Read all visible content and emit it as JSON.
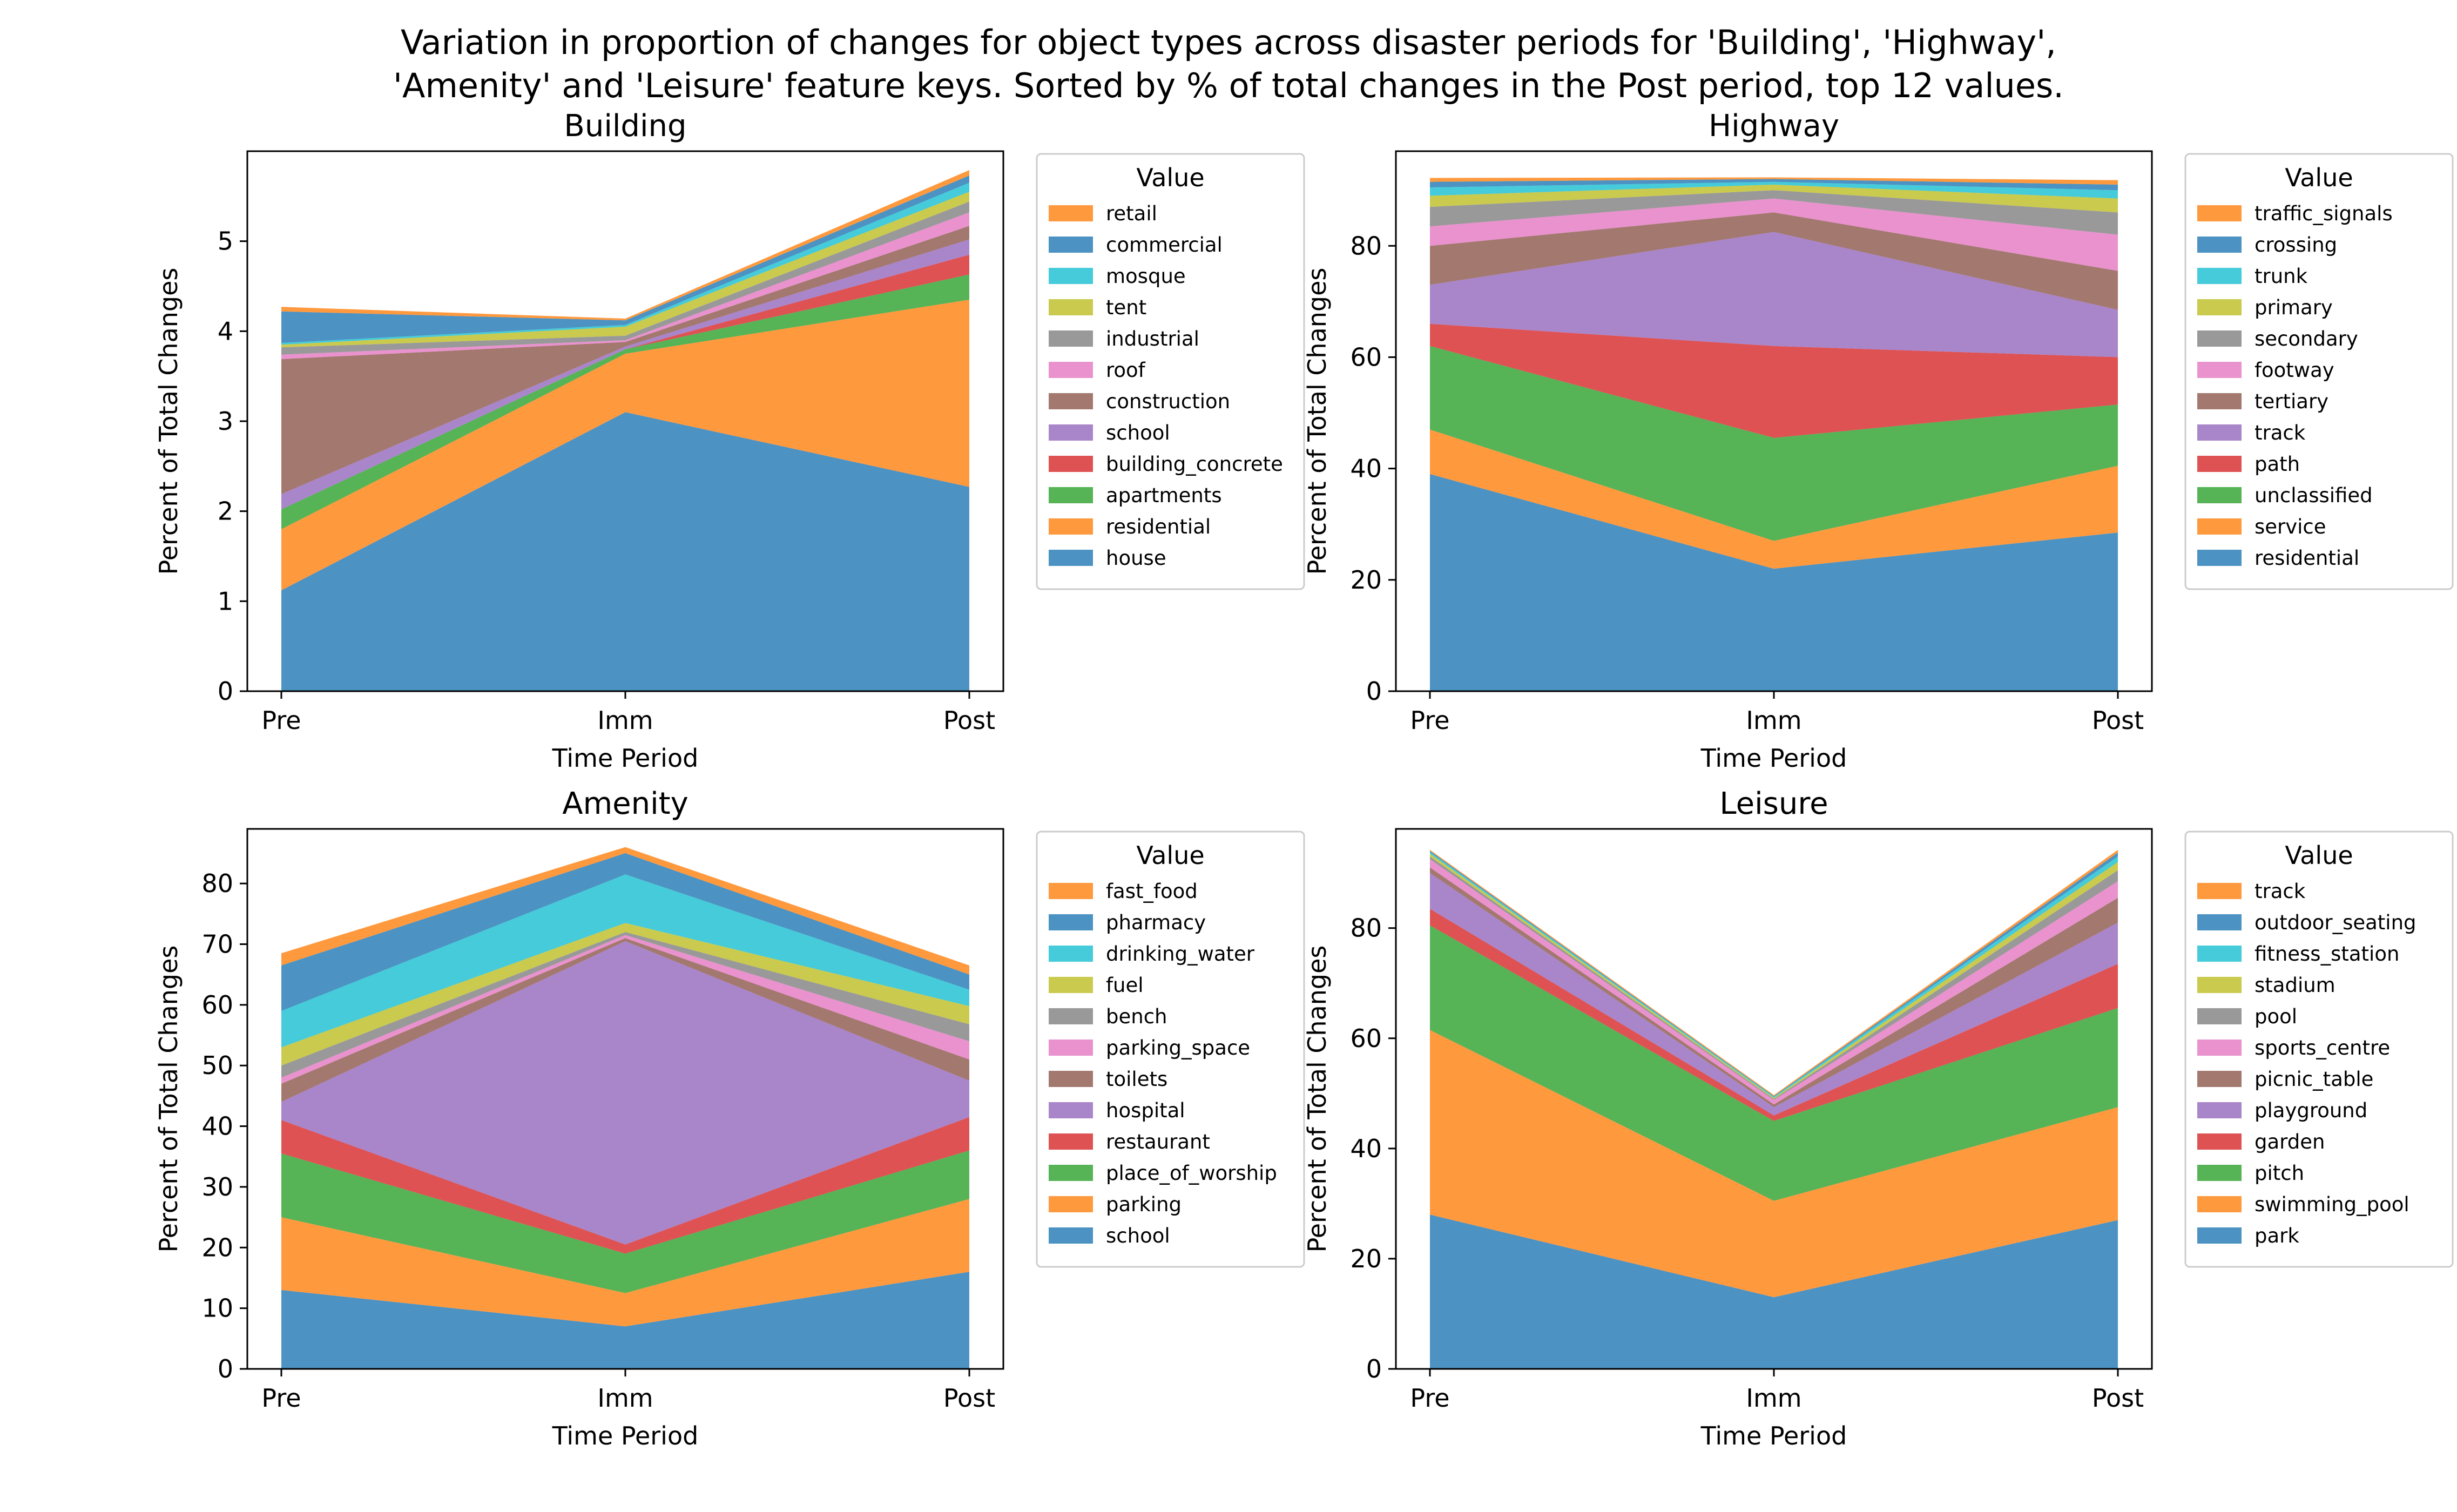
{
  "figure": {
    "title_line1": "Variation in proportion of changes for object types across disaster periods for 'Building', 'Highway',",
    "title_line2": "'Amenity' and 'Leisure' feature keys. Sorted by % of total changes in the Post period, top 12 values."
  },
  "colors": [
    "#1f77b4",
    "#ff7f0e",
    "#2ca02c",
    "#d62728",
    "#9467bd",
    "#8c564b",
    "#e377c2",
    "#7f7f7f",
    "#bcbd22",
    "#17becf",
    "#1f77b4",
    "#ff7f0e"
  ],
  "chart_data": [
    {
      "type": "area",
      "title": "Building",
      "xlabel": "Time Period",
      "ylabel": "Percent of Total Changes",
      "legend_title": "Value",
      "legend_position": "outside-right",
      "x": [
        "Pre",
        "Imm",
        "Post"
      ],
      "ylim": [
        0,
        6
      ],
      "yticks": [
        0,
        1,
        2,
        3,
        4,
        5
      ],
      "series": [
        {
          "name": "house",
          "values": [
            1.12,
            3.1,
            2.27
          ]
        },
        {
          "name": "residential",
          "values": [
            0.68,
            0.65,
            2.08
          ]
        },
        {
          "name": "apartments",
          "values": [
            0.22,
            0.05,
            0.28
          ]
        },
        {
          "name": "building_concrete",
          "values": [
            0.0,
            0.0,
            0.22
          ]
        },
        {
          "name": "school",
          "values": [
            0.17,
            0.03,
            0.17
          ]
        },
        {
          "name": "construction",
          "values": [
            1.5,
            0.05,
            0.15
          ]
        },
        {
          "name": "roof",
          "values": [
            0.05,
            0.02,
            0.15
          ]
        },
        {
          "name": "industrial",
          "values": [
            0.08,
            0.05,
            0.12
          ]
        },
        {
          "name": "tent",
          "values": [
            0.03,
            0.1,
            0.11
          ]
        },
        {
          "name": "mosque",
          "values": [
            0.02,
            0.02,
            0.1
          ]
        },
        {
          "name": "commercial",
          "values": [
            0.35,
            0.05,
            0.08
          ]
        },
        {
          "name": "retail",
          "values": [
            0.05,
            0.02,
            0.06
          ]
        }
      ]
    },
    {
      "type": "area",
      "title": "Highway",
      "xlabel": "Time Period",
      "ylabel": "Percent of Total Changes",
      "legend_title": "Value",
      "legend_position": "outside-right",
      "x": [
        "Pre",
        "Imm",
        "Post"
      ],
      "ylim": [
        0,
        97
      ],
      "yticks": [
        0,
        20,
        40,
        60,
        80
      ],
      "series": [
        {
          "name": "residential",
          "values": [
            39.0,
            22.0,
            28.5
          ]
        },
        {
          "name": "service",
          "values": [
            8.0,
            5.0,
            12.0
          ]
        },
        {
          "name": "unclassified",
          "values": [
            15.0,
            18.5,
            11.0
          ]
        },
        {
          "name": "path",
          "values": [
            4.0,
            16.5,
            8.5
          ]
        },
        {
          "name": "track",
          "values": [
            7.0,
            20.5,
            8.5
          ]
        },
        {
          "name": "tertiary",
          "values": [
            7.0,
            3.5,
            7.0
          ]
        },
        {
          "name": "footway",
          "values": [
            3.5,
            2.5,
            6.5
          ]
        },
        {
          "name": "secondary",
          "values": [
            3.5,
            1.5,
            4.0
          ]
        },
        {
          "name": "primary",
          "values": [
            2.0,
            1.0,
            2.5
          ]
        },
        {
          "name": "trunk",
          "values": [
            1.5,
            0.5,
            1.5
          ]
        },
        {
          "name": "crossing",
          "values": [
            1.0,
            0.5,
            1.0
          ]
        },
        {
          "name": "traffic_signals",
          "values": [
            0.7,
            0.3,
            0.8
          ]
        }
      ]
    },
    {
      "type": "area",
      "title": "Amenity",
      "xlabel": "Time Period",
      "ylabel": "Percent of Total Changes",
      "legend_title": "Value",
      "legend_position": "outside-right",
      "x": [
        "Pre",
        "Imm",
        "Post"
      ],
      "ylim": [
        0,
        89
      ],
      "yticks": [
        0,
        10,
        20,
        30,
        40,
        50,
        60,
        70,
        80
      ],
      "series": [
        {
          "name": "school",
          "values": [
            13.0,
            7.0,
            16.0
          ]
        },
        {
          "name": "parking",
          "values": [
            12.0,
            5.5,
            12.0
          ]
        },
        {
          "name": "place_of_worship",
          "values": [
            10.5,
            6.5,
            8.0
          ]
        },
        {
          "name": "restaurant",
          "values": [
            5.5,
            1.5,
            5.5
          ]
        },
        {
          "name": "hospital",
          "values": [
            3.0,
            50.0,
            6.0
          ]
        },
        {
          "name": "toilets",
          "values": [
            3.0,
            0.5,
            3.5
          ]
        },
        {
          "name": "parking_space",
          "values": [
            1.0,
            0.5,
            3.0
          ]
        },
        {
          "name": "bench",
          "values": [
            2.0,
            0.5,
            2.8
          ]
        },
        {
          "name": "fuel",
          "values": [
            3.0,
            1.5,
            3.0
          ]
        },
        {
          "name": "drinking_water",
          "values": [
            6.0,
            8.0,
            2.7
          ]
        },
        {
          "name": "pharmacy",
          "values": [
            7.5,
            3.5,
            2.5
          ]
        },
        {
          "name": "fast_food",
          "values": [
            2.0,
            1.0,
            1.5
          ]
        }
      ]
    },
    {
      "type": "area",
      "title": "Leisure",
      "xlabel": "Time Period",
      "ylabel": "Percent of Total Changes",
      "legend_title": "Value",
      "legend_position": "outside-right",
      "x": [
        "Pre",
        "Imm",
        "Post"
      ],
      "ylim": [
        0,
        98
      ],
      "yticks": [
        0,
        20,
        40,
        60,
        80
      ],
      "series": [
        {
          "name": "park",
          "values": [
            28.0,
            13.0,
            27.0
          ]
        },
        {
          "name": "swimming_pool",
          "values": [
            33.5,
            17.5,
            20.5
          ]
        },
        {
          "name": "pitch",
          "values": [
            19.0,
            14.5,
            18.0
          ]
        },
        {
          "name": "garden",
          "values": [
            3.0,
            1.0,
            8.0
          ]
        },
        {
          "name": "playground",
          "values": [
            6.5,
            1.5,
            7.5
          ]
        },
        {
          "name": "picnic_table",
          "values": [
            1.0,
            0.5,
            4.5
          ]
        },
        {
          "name": "sports_centre",
          "values": [
            1.5,
            0.8,
            3.0
          ]
        },
        {
          "name": "pool",
          "values": [
            0.5,
            0.2,
            2.0
          ]
        },
        {
          "name": "stadium",
          "values": [
            0.5,
            0.2,
            1.5
          ]
        },
        {
          "name": "fitness_station",
          "values": [
            0.3,
            0.2,
            1.0
          ]
        },
        {
          "name": "outdoor_seating",
          "values": [
            0.2,
            0.1,
            0.7
          ]
        },
        {
          "name": "track",
          "values": [
            0.2,
            0.2,
            0.5
          ]
        }
      ]
    }
  ]
}
